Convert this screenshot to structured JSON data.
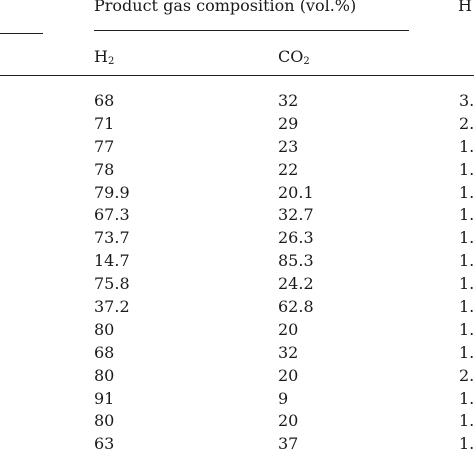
{
  "table": {
    "group_title": "Product gas composition (vol.%)",
    "right_title": "H",
    "columns": {
      "h2": {
        "base": "H",
        "sub": "2"
      },
      "co2": {
        "base": "CO",
        "sub": "2"
      }
    },
    "rows": [
      {
        "h2": "68",
        "co2": "32",
        "h": "3."
      },
      {
        "h2": "71",
        "co2": "29",
        "h": "2."
      },
      {
        "h2": "77",
        "co2": "23",
        "h": "1."
      },
      {
        "h2": "78",
        "co2": "22",
        "h": "1."
      },
      {
        "h2": "79.9",
        "co2": "20.1",
        "h": "1."
      },
      {
        "h2": "67.3",
        "co2": "32.7",
        "h": "1."
      },
      {
        "h2": "73.7",
        "co2": "26.3",
        "h": "1."
      },
      {
        "h2": "14.7",
        "co2": "85.3",
        "h": "1."
      },
      {
        "h2": "75.8",
        "co2": "24.2",
        "h": "1."
      },
      {
        "h2": "37.2",
        "co2": "62.8",
        "h": "1."
      },
      {
        "h2": "80",
        "co2": "20",
        "h": "1."
      },
      {
        "h2": "68",
        "co2": "32",
        "h": "1."
      },
      {
        "h2": "80",
        "co2": "20",
        "h": "2."
      },
      {
        "h2": "91",
        "co2": "9",
        "h": "1."
      },
      {
        "h2": "80",
        "co2": "20",
        "h": "1."
      },
      {
        "h2": "63",
        "co2": "37",
        "h": "1."
      }
    ]
  }
}
